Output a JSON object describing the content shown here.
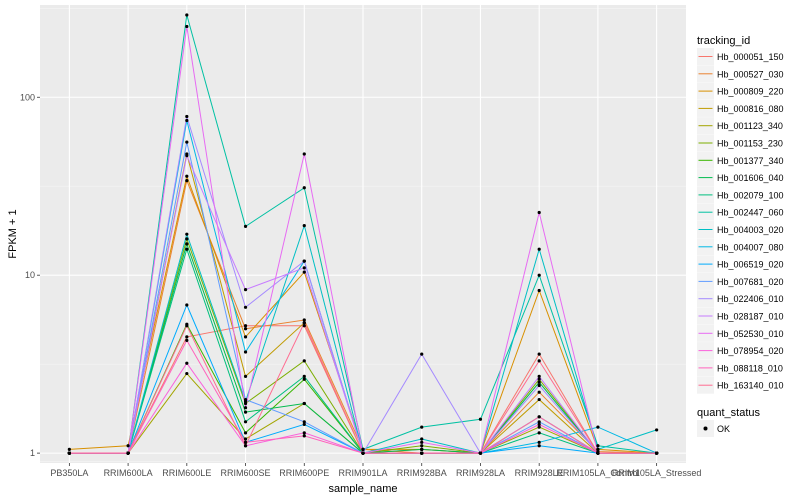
{
  "chart_data": {
    "type": "line",
    "xlabel": "sample_name",
    "ylabel": "FPKM + 1",
    "y_scale": "log10",
    "ylim": [
      0.88,
      330
    ],
    "y_ticks": [
      1,
      10,
      100
    ],
    "y_tick_labels": [
      "1",
      "10",
      "100"
    ],
    "grid": true,
    "legend_placement": "right",
    "categories": [
      "PB350LA",
      "RRIM600LA",
      "RRIM600LE",
      "RRIM600SE",
      "RRIM600PE",
      "RRIM901LA",
      "RRIM928BA",
      "RRIM928LA",
      "RRIM928LE",
      "RRIM105LA_Control",
      "RRIM105LA_Stressed"
    ],
    "legend_title": "tracking_id",
    "shape_legend": {
      "title": "quant_status",
      "label": "OK"
    },
    "series": [
      {
        "name": "Hb_000051_150",
        "color": "#F8766D",
        "values": [
          1.0,
          1.0,
          4.5,
          5.2,
          5.2,
          1.0,
          1.05,
          1.0,
          3.6,
          1.0,
          1.0
        ]
      },
      {
        "name": "Hb_000527_030",
        "color": "#EA8331",
        "values": [
          1.0,
          1.0,
          34,
          5.0,
          5.6,
          1.05,
          1.0,
          1.0,
          2.2,
          1.02,
          1.0
        ]
      },
      {
        "name": "Hb_000809_220",
        "color": "#D89000",
        "values": [
          1.05,
          1.1,
          36,
          4.5,
          10.4,
          1.05,
          1.05,
          1.0,
          8.2,
          1.05,
          1.0
        ]
      },
      {
        "name": "Hb_000816_080",
        "color": "#C09B00",
        "values": [
          1.0,
          1.0,
          48,
          2.7,
          5.4,
          1.0,
          1.0,
          1.0,
          2.0,
          1.0,
          1.0
        ]
      },
      {
        "name": "Hb_001123_340",
        "color": "#A3A500",
        "values": [
          1.0,
          1.0,
          2.8,
          1.2,
          1.9,
          1.0,
          1.0,
          1.0,
          1.4,
          1.0,
          1.0
        ]
      },
      {
        "name": "Hb_001153_230",
        "color": "#7CAE00",
        "values": [
          1.0,
          1.0,
          16,
          1.9,
          3.3,
          1.0,
          1.1,
          1.0,
          2.6,
          1.0,
          1.0
        ]
      },
      {
        "name": "Hb_001377_340",
        "color": "#39B600",
        "values": [
          1.0,
          1.0,
          5.3,
          1.3,
          2.6,
          1.0,
          1.0,
          1.0,
          1.6,
          1.0,
          1.0
        ]
      },
      {
        "name": "Hb_001606_040",
        "color": "#00BB4E",
        "values": [
          1.0,
          1.0,
          15,
          1.7,
          1.9,
          1.0,
          1.05,
          1.0,
          2.5,
          1.0,
          1.0
        ]
      },
      {
        "name": "Hb_002079_100",
        "color": "#00BF7D",
        "values": [
          1.0,
          1.0,
          14,
          1.5,
          2.7,
          1.0,
          1.0,
          1.0,
          1.3,
          1.0,
          1.0
        ]
      },
      {
        "name": "Hb_002447_060",
        "color": "#00C1A3",
        "values": [
          1.0,
          1.0,
          290,
          18.8,
          31,
          1.05,
          1.4,
          1.55,
          10,
          1.1,
          1.0
        ]
      },
      {
        "name": "Hb_004003_020",
        "color": "#00BFC4",
        "values": [
          1.0,
          1.0,
          17,
          1.95,
          19,
          1.0,
          1.2,
          1.0,
          14,
          1.05,
          1.35
        ]
      },
      {
        "name": "Hb_004007_080",
        "color": "#00B8E5",
        "values": [
          1.0,
          1.0,
          74,
          3.7,
          12,
          1.0,
          1.0,
          1.0,
          1.15,
          1.4,
          1.0
        ]
      },
      {
        "name": "Hb_006519_020",
        "color": "#00ABFD",
        "values": [
          1.0,
          1.0,
          6.8,
          1.15,
          1.45,
          1.0,
          1.0,
          1.0,
          1.1,
          1.0,
          1.0
        ]
      },
      {
        "name": "Hb_007681_020",
        "color": "#619CFF",
        "values": [
          1.0,
          1.0,
          56,
          2.0,
          1.5,
          1.0,
          1.0,
          1.0,
          1.5,
          1.0,
          1.0
        ]
      },
      {
        "name": "Hb_022406_010",
        "color": "#A58AFF",
        "values": [
          1.0,
          1.0,
          78,
          6.6,
          12,
          1.0,
          3.6,
          1.0,
          2.4,
          1.0,
          1.0
        ]
      },
      {
        "name": "Hb_028187_010",
        "color": "#C77CFF",
        "values": [
          1.0,
          1.0,
          47,
          8.3,
          11,
          1.0,
          1.0,
          1.0,
          2.7,
          1.0,
          1.0
        ]
      },
      {
        "name": "Hb_052530_010",
        "color": "#E76BF3",
        "values": [
          1.0,
          1.0,
          250,
          1.8,
          48,
          1.0,
          1.15,
          1.0,
          22.5,
          1.0,
          1.0
        ]
      },
      {
        "name": "Hb_078954_020",
        "color": "#FA62DB",
        "values": [
          1.0,
          1.0,
          3.2,
          1.1,
          1.3,
          1.0,
          1.0,
          1.0,
          1.45,
          1.0,
          1.0
        ]
      },
      {
        "name": "Hb_088118_010",
        "color": "#FF62BC",
        "values": [
          1.0,
          1.0,
          4.3,
          1.15,
          1.25,
          1.0,
          1.0,
          1.0,
          1.6,
          1.0,
          1.0
        ]
      },
      {
        "name": "Hb_163140_010",
        "color": "#FF6C91",
        "values": [
          1.0,
          1.0,
          5.2,
          1.1,
          5.4,
          1.0,
          1.0,
          1.0,
          3.3,
          1.0,
          1.0
        ]
      }
    ]
  }
}
